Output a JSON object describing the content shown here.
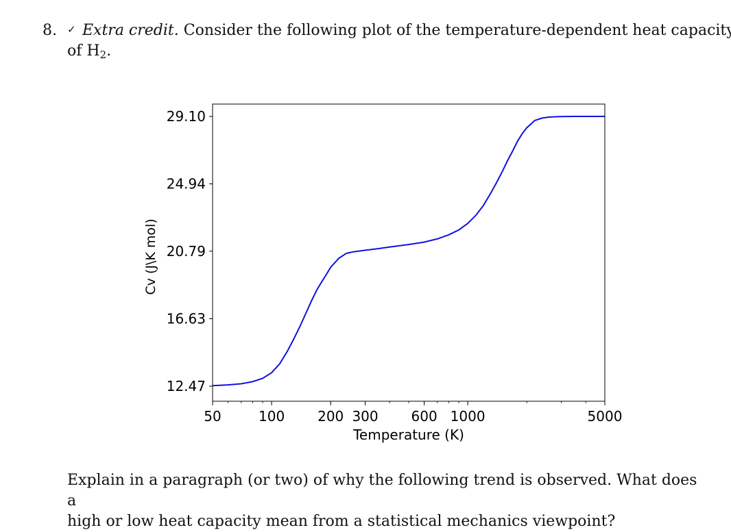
{
  "question": {
    "number": "8.",
    "check_mark": "✓",
    "extra_credit": "Extra credit.",
    "text_before": "Consider the following plot of the temperature-dependent heat capacity",
    "line2_prefix": "of H",
    "line2_subscript": "2",
    "line2_suffix": "."
  },
  "chart_data": {
    "type": "line",
    "xlabel": "Temperature (K)",
    "ylabel": "Cv (J\\K mol)",
    "x_scale": "log",
    "xlim": [
      50,
      5000
    ],
    "ylim": [
      12.47,
      29.1
    ],
    "xticks": [
      50,
      100,
      200,
      300,
      600,
      1000,
      5000
    ],
    "xtick_labels": [
      "50",
      "100",
      "200",
      "300",
      "600",
      "1000",
      "5000"
    ],
    "yticks": [
      12.47,
      16.63,
      20.79,
      24.94,
      29.1
    ],
    "ytick_labels": [
      "12.47",
      "16.63",
      "20.79",
      "24.94",
      "29.10"
    ],
    "grid": false,
    "line_color": "#1010e0",
    "series": [
      {
        "x": [
          50,
          60,
          70,
          80,
          90,
          100,
          110,
          120,
          130,
          140,
          150,
          160,
          170,
          180,
          190,
          200,
          220,
          240,
          260,
          280,
          300,
          350,
          400,
          500,
          600,
          700,
          800,
          900,
          1000,
          1100,
          1200,
          1300,
          1400,
          1500,
          1600,
          1700,
          1800,
          1900,
          2000,
          2200,
          2400,
          2600,
          2800,
          3000,
          3500,
          4000,
          5000
        ],
        "y": [
          12.5,
          12.55,
          12.62,
          12.75,
          12.95,
          13.3,
          13.85,
          14.6,
          15.4,
          16.2,
          17.0,
          17.75,
          18.4,
          18.9,
          19.35,
          19.8,
          20.35,
          20.65,
          20.75,
          20.8,
          20.85,
          20.95,
          21.05,
          21.2,
          21.35,
          21.55,
          21.8,
          22.1,
          22.5,
          23.0,
          23.6,
          24.3,
          25.0,
          25.7,
          26.4,
          27.0,
          27.6,
          28.05,
          28.4,
          28.85,
          29.0,
          29.06,
          29.08,
          29.09,
          29.1,
          29.1,
          29.1
        ]
      }
    ]
  },
  "prompt": {
    "line1": "Explain in a paragraph (or two) of why the following trend is observed. What does a",
    "line2": "high or low heat capacity mean from a statistical mechanics viewpoint?"
  }
}
